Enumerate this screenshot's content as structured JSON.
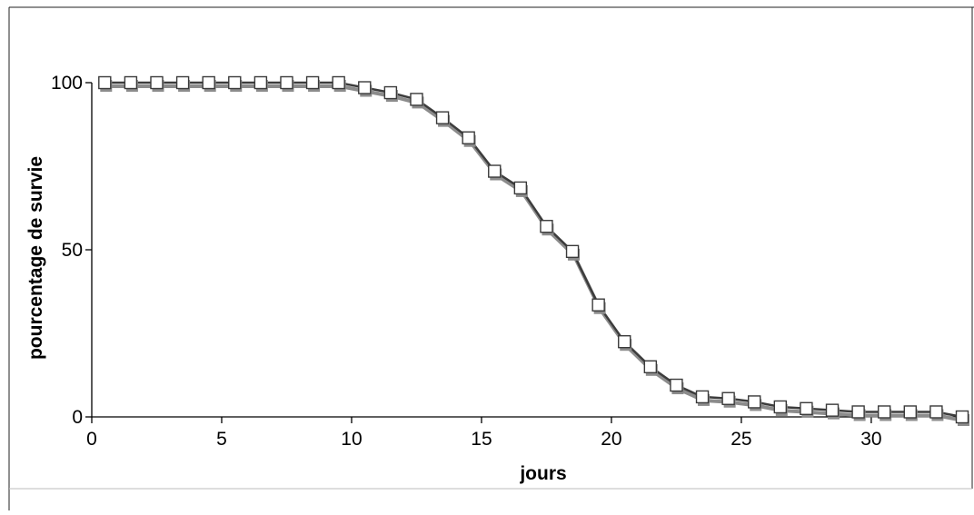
{
  "chart_data": {
    "type": "line",
    "title": "",
    "xlabel": "jours",
    "ylabel": "pourcentage de survie",
    "xlim": [
      0,
      33.5
    ],
    "ylim": [
      0,
      100
    ],
    "x_ticks": [
      "0",
      "5",
      "10",
      "15",
      "20",
      "25",
      "30"
    ],
    "y_ticks": [
      "0",
      "50",
      "100"
    ],
    "grid": false,
    "legend": "none",
    "series": [
      {
        "marker": "square",
        "x": [
          0.5,
          1.5,
          2.5,
          3.5,
          4.5,
          5.5,
          6.5,
          7.5,
          8.5,
          9.5,
          10.5,
          11.5,
          12.5,
          13.5,
          14.5,
          15.5,
          16.5,
          17.5,
          18.5,
          19.5,
          20.5,
          21.5,
          22.5,
          23.5,
          24.5,
          25.5,
          26.5,
          27.5,
          28.5,
          29.5,
          30.5,
          31.5,
          32.5,
          33.5
        ],
        "values": [
          100,
          100,
          100,
          100,
          100,
          100,
          100,
          100,
          100,
          100,
          98.5,
          97,
          95,
          89.5,
          83.5,
          73.5,
          68.5,
          57,
          49.5,
          33.5,
          22.5,
          15,
          9.5,
          6,
          5.5,
          4.5,
          3,
          2.5,
          2,
          1.5,
          1.5,
          1.5,
          1.5,
          0
        ]
      }
    ],
    "colors": {
      "line": "#3c3c3c",
      "shadow": "#8c8c8c",
      "marker_fill": "#ffffff",
      "marker_stroke": "#3a3a3a",
      "axis": "#000000"
    }
  }
}
